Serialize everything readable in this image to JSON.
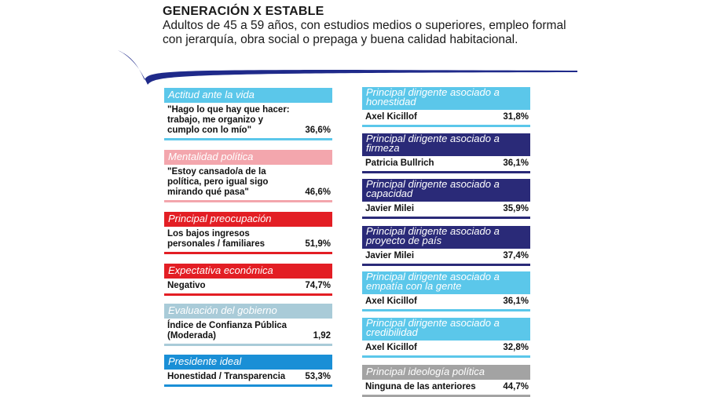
{
  "header": {
    "title": "GENERACIÓN X ESTABLE",
    "subtitle": "Adultos de 45 a 59 años, con estudios medios o superiores, empleo formal con jerarquía, obra social o prepaga y buena calidad habitacional."
  },
  "colors": {
    "light_blue": "#5bc7ea",
    "pink": "#f3a6ad",
    "red": "#e31e24",
    "grey_blue": "#a9cbd8",
    "mid_blue": "#1a8fd6",
    "navy": "#2a2a78",
    "grey": "#a3a3a3",
    "swoosh": "#1f2a8a"
  },
  "left_cards": [
    {
      "heading": "Actitud ante la vida",
      "text": "\"Hago lo que hay que hacer: trabajo, me organizo y cumplo con lo mío\"",
      "value": "36,6%"
    },
    {
      "heading": "Mentalidad política",
      "text": "\"Estoy cansado/a de la política, pero igual sigo mirando qué pasa\"",
      "value": "46,6%"
    },
    {
      "heading": "Principal preocupación",
      "text": "Los bajos ingresos personales / familiares",
      "value": "51,9%"
    },
    {
      "heading": "Expectativa económica",
      "text": "Negativo",
      "value": "74,7%"
    },
    {
      "heading": "Evaluación del gobierno",
      "text": "Índice de Confianza Pública (Moderada)",
      "value": "1,92"
    },
    {
      "heading": "Presidente ideal",
      "text": "Honestidad / Transparencia",
      "value": "53,3%"
    }
  ],
  "right_cards": [
    {
      "heading": "Principal dirigente asociado a honestidad",
      "text": "Axel Kicillof",
      "value": "31,8%"
    },
    {
      "heading": "Principal dirigente asociado a firmeza",
      "text": "Patricia Bullrich",
      "value": "36,1%"
    },
    {
      "heading": "Principal dirigente asociado a capacidad",
      "text": "Javier Milei",
      "value": "35,9%"
    },
    {
      "heading": "Principal dirigente asociado a proyecto de país",
      "text": "Javier Milei",
      "value": "37,4%"
    },
    {
      "heading": "Principal dirigente asociado a empatía con la gente",
      "text": "Axel Kicillof",
      "value": "36,1%"
    },
    {
      "heading": "Principal dirigente asociado a credibilidad",
      "text": "Axel Kicillof",
      "value": "32,8%"
    },
    {
      "heading": "Principal ideología política",
      "text": "Ninguna de las anteriores",
      "value": "44,7%"
    }
  ]
}
